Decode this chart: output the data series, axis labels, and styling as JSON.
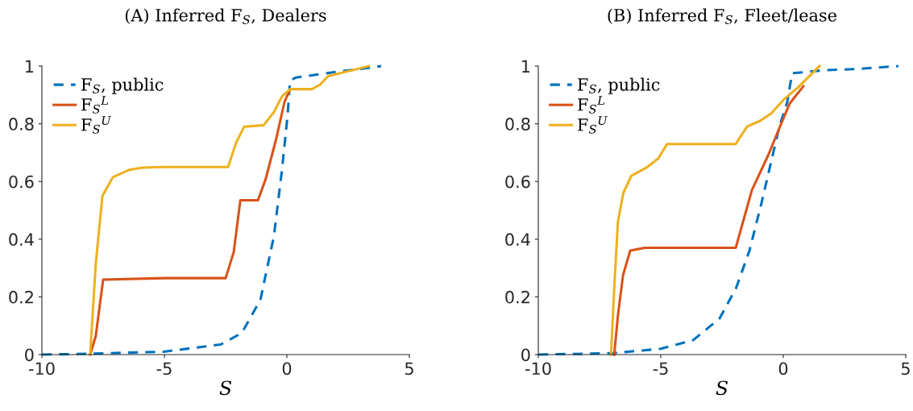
{
  "chart_data": [
    {
      "type": "line",
      "title": "(A) Inferred F$_{S}$, Dealers",
      "xlabel": "S",
      "xlim": [
        -10,
        5
      ],
      "ylim": [
        0,
        1
      ],
      "xticks": [
        -10,
        -5,
        0,
        5
      ],
      "yticks": [
        0,
        0.2,
        0.4,
        0.6,
        0.8,
        1
      ],
      "grid": false,
      "legend": "top left",
      "marker": "none",
      "series": [
        {
          "name": "F$_{S}$, public",
          "color": "#0072bd",
          "line_style": "dashed",
          "x": [
            -10,
            -8,
            -5.03,
            -2.7,
            -1.84,
            -1.08,
            -0.53,
            -0.2,
            0.03,
            0.13,
            0.36,
            2.0,
            3.0,
            3.85
          ],
          "values": [
            0,
            0.003,
            0.01,
            0.035,
            0.075,
            0.19,
            0.41,
            0.64,
            0.83,
            0.95,
            0.96,
            0.98,
            0.99,
            1.0
          ]
        },
        {
          "name": "F$_{S}$$^{L}$",
          "color": "#d95319",
          "line_style": "solid",
          "x": [
            -8.03,
            -7.8,
            -7.5,
            -5.0,
            -2.5,
            -2.17,
            -1.9,
            -1.18,
            -0.86,
            -0.43,
            -0.1,
            0.13
          ],
          "values": [
            0,
            0.065,
            0.26,
            0.265,
            0.265,
            0.355,
            0.535,
            0.535,
            0.61,
            0.75,
            0.875,
            0.92
          ]
        },
        {
          "name": "F$_{S}$$^{U}$",
          "color": "#edb120",
          "line_style": "solid",
          "x": [
            -8.03,
            -7.8,
            -7.53,
            -7.1,
            -6.45,
            -5.9,
            -5.03,
            -2.4,
            -2.07,
            -1.74,
            -0.95,
            -0.53,
            -0.2,
            0.13,
            1.02,
            1.35,
            1.68,
            3.35
          ],
          "values": [
            0,
            0.315,
            0.55,
            0.615,
            0.64,
            0.648,
            0.65,
            0.65,
            0.735,
            0.79,
            0.795,
            0.84,
            0.895,
            0.92,
            0.92,
            0.935,
            0.965,
            1.0
          ]
        }
      ]
    },
    {
      "type": "line",
      "title": "(B) Inferred F$_{S}$, Fleet/lease",
      "xlabel": "S",
      "xlim": [
        -10,
        5
      ],
      "ylim": [
        0,
        1
      ],
      "xticks": [
        -10,
        -5,
        0,
        5
      ],
      "yticks": [
        0,
        0.2,
        0.4,
        0.6,
        0.8,
        1
      ],
      "grid": false,
      "legend": "top left",
      "marker": "none",
      "series": [
        {
          "name": "F$_{S}$, public",
          "color": "#0072bd",
          "line_style": "dashed",
          "x": [
            -10,
            -6.97,
            -5,
            -3.68,
            -2.6,
            -1.93,
            -1.38,
            -0.89,
            -0.49,
            -0.16,
            0.16,
            0.36,
            1.58,
            3.0,
            4.7
          ],
          "values": [
            0,
            0.005,
            0.02,
            0.05,
            0.125,
            0.23,
            0.36,
            0.525,
            0.67,
            0.79,
            0.875,
            0.975,
            0.985,
            0.99,
            1.0
          ]
        },
        {
          "name": "F$_{S}$$^{L}$",
          "color": "#d95319",
          "line_style": "solid",
          "x": [
            -6.9,
            -6.75,
            -6.54,
            -6.25,
            -5.66,
            -1.94,
            -1.71,
            -1.28,
            -0.62,
            -0.16,
            0.26,
            0.82
          ],
          "values": [
            0,
            0.135,
            0.275,
            0.36,
            0.37,
            0.37,
            0.44,
            0.57,
            0.69,
            0.785,
            0.87,
            0.93
          ]
        },
        {
          "name": "F$_{S}$$^{U}$",
          "color": "#edb120",
          "line_style": "solid",
          "x": [
            -7.03,
            -6.9,
            -6.75,
            -6.53,
            -6.2,
            -5.55,
            -5.1,
            -4.74,
            -1.94,
            -1.48,
            -0.95,
            -0.5,
            0.03,
            0.59,
            1.48
          ],
          "values": [
            0,
            0.23,
            0.46,
            0.56,
            0.62,
            0.65,
            0.68,
            0.73,
            0.73,
            0.79,
            0.81,
            0.835,
            0.885,
            0.925,
            1.0
          ]
        }
      ]
    }
  ]
}
